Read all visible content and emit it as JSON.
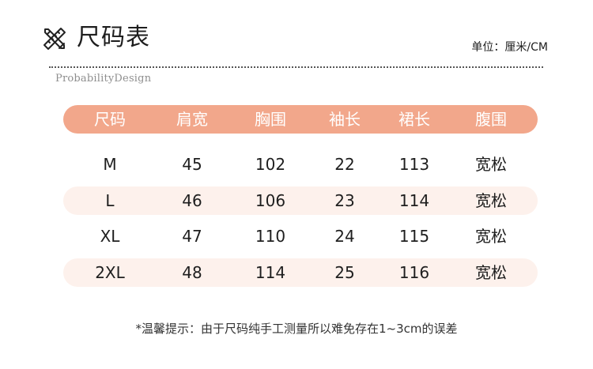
{
  "header": {
    "title": "尺码表",
    "unit": "单位：厘米/CM",
    "brand": "ProbabilityDesign"
  },
  "table": {
    "columns": [
      "尺码",
      "肩宽",
      "胸围",
      "袖长",
      "裙长",
      "腹围"
    ],
    "rows": [
      [
        "M",
        "45",
        "102",
        "22",
        "113",
        "宽松"
      ],
      [
        "L",
        "46",
        "106",
        "23",
        "114",
        "宽松"
      ],
      [
        "XL",
        "47",
        "110",
        "24",
        "115",
        "宽松"
      ],
      [
        "2XL",
        "48",
        "114",
        "25",
        "116",
        "宽松"
      ]
    ]
  },
  "footer": {
    "note": "*温馨提示：由于尺码纯手工测量所以难免存在1~3cm的误差"
  },
  "colors": {
    "header_bg": "#f2a78b",
    "stripe_bg": "#fdf1ec"
  },
  "icons": {
    "logo": "crossed-pencil-ruler-icon"
  }
}
